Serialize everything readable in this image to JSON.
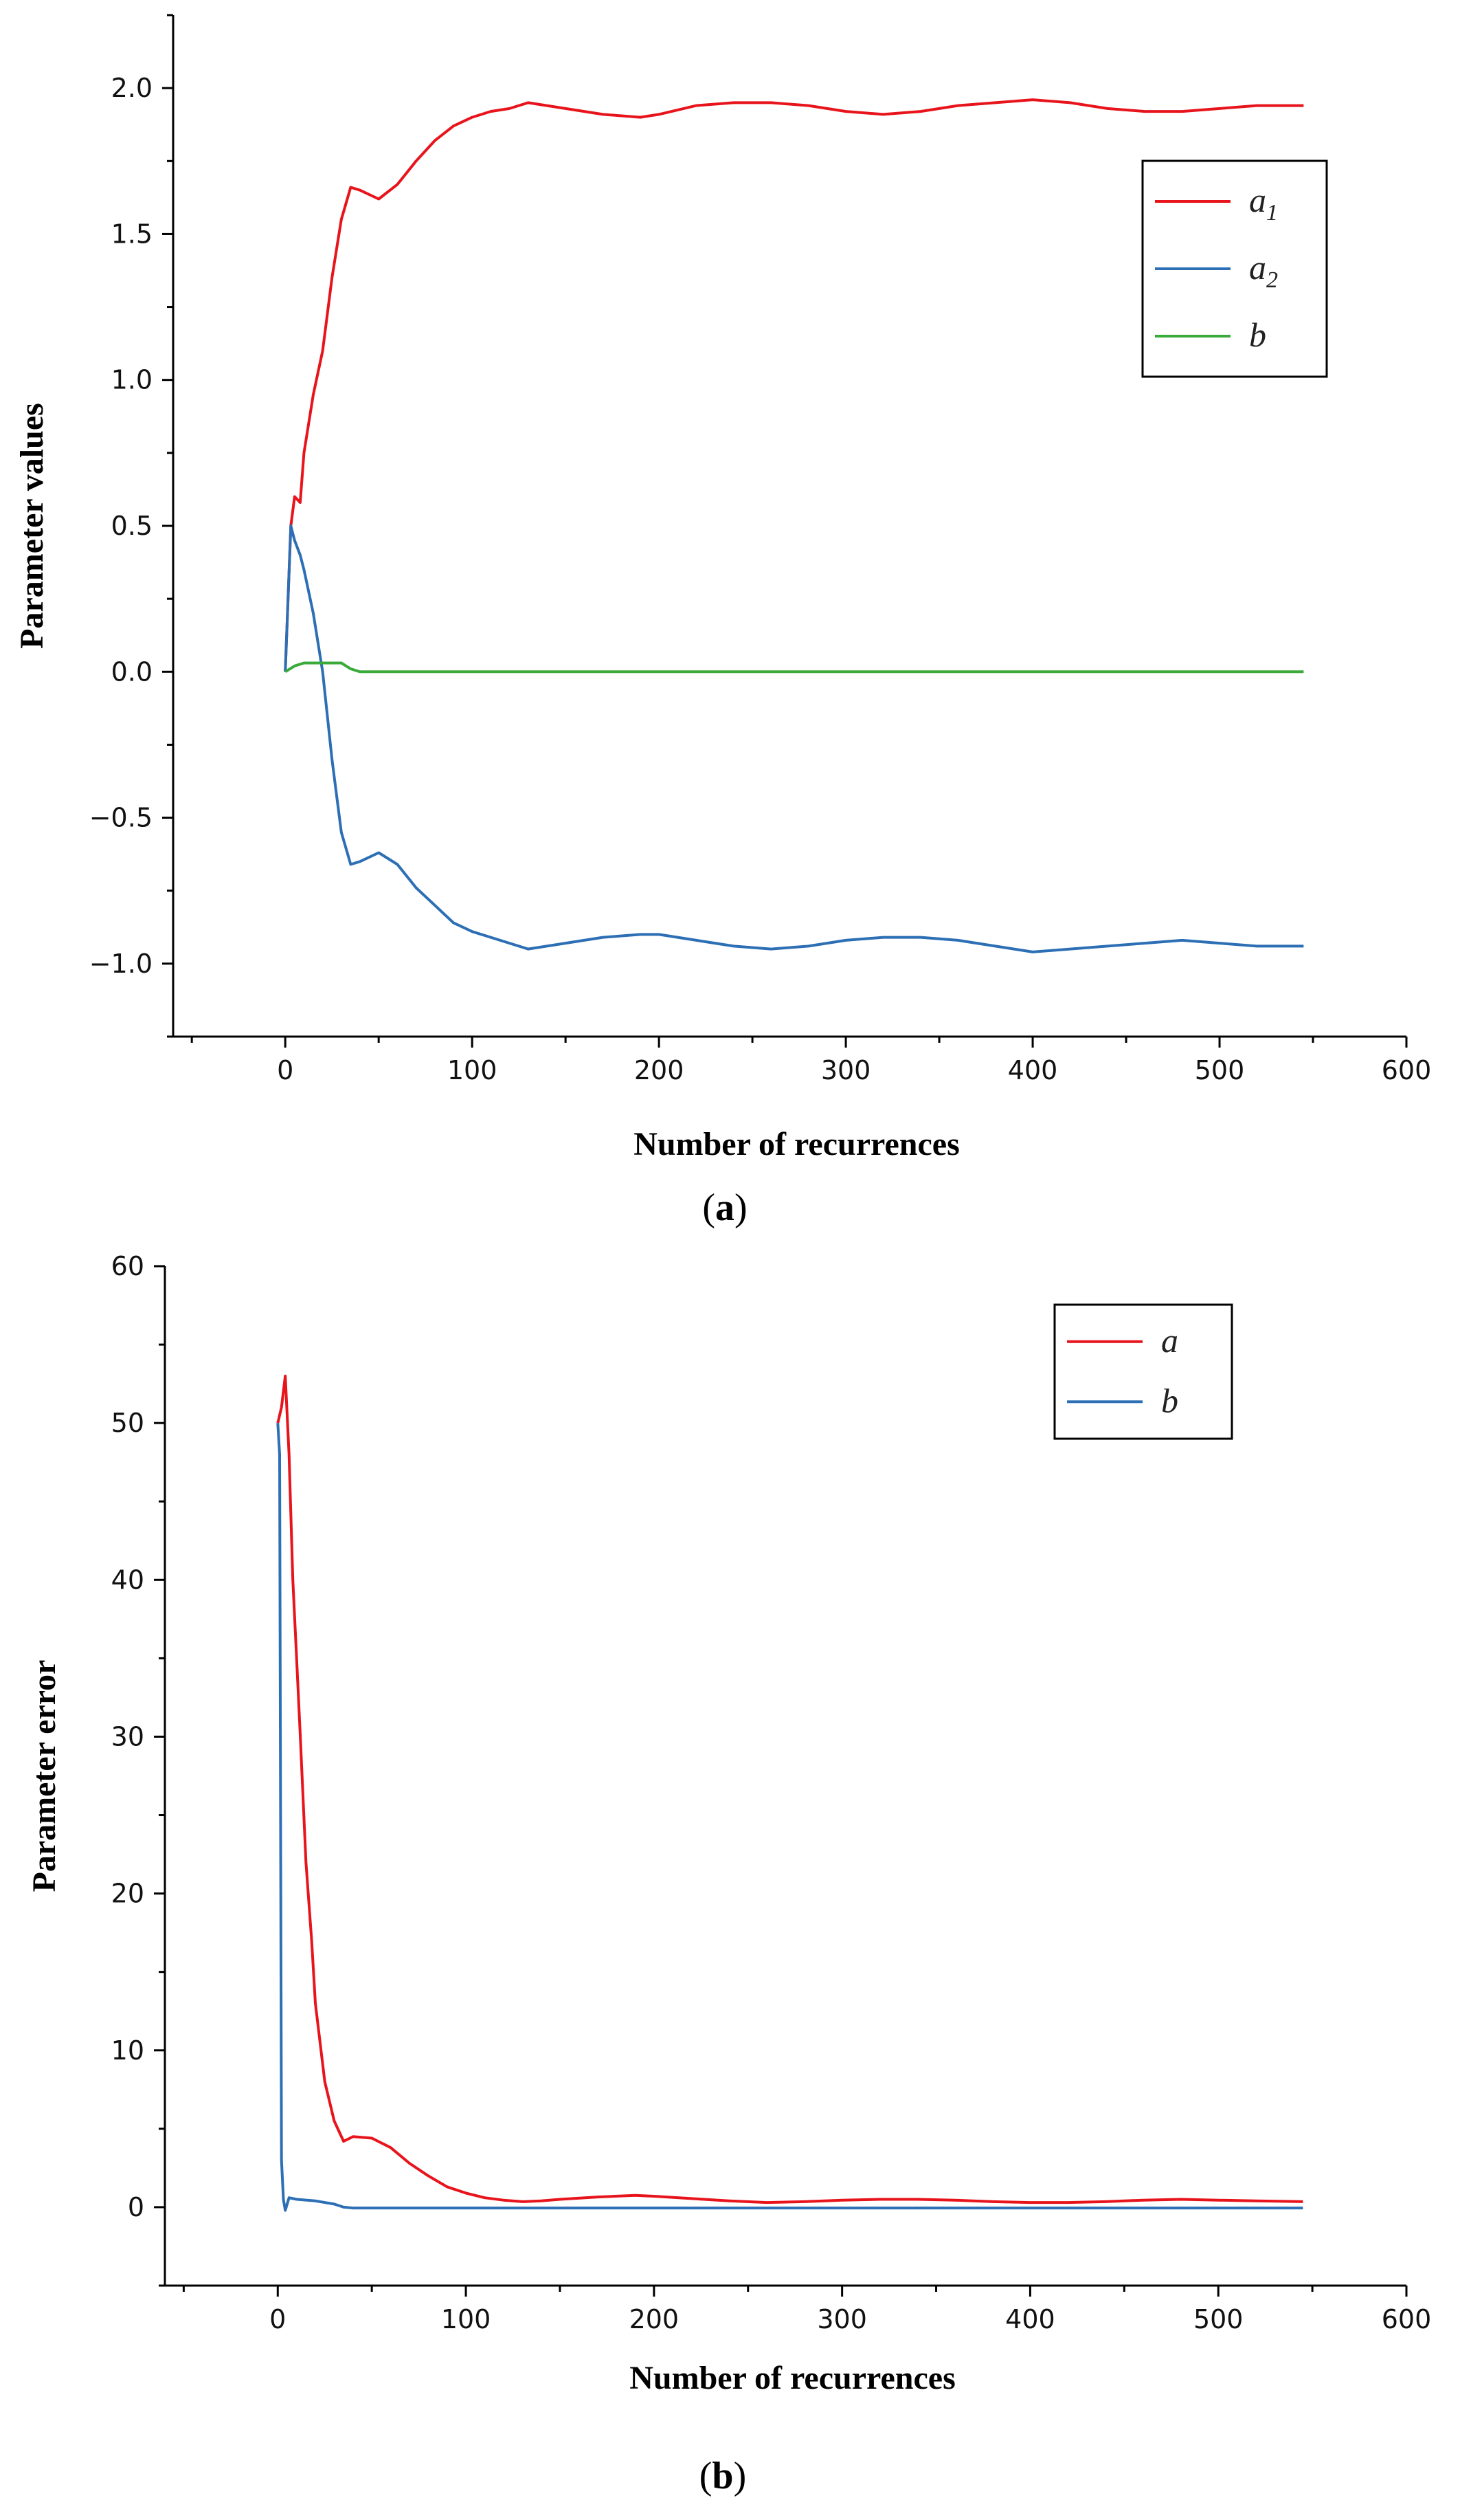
{
  "chart_data": [
    {
      "type": "line",
      "panel_label": "a",
      "xlabel": "Number of recurrences",
      "ylabel": "Parameter values",
      "xlim": [
        -60,
        600
      ],
      "ylim": [
        -1.25,
        2.25
      ],
      "xticks": [
        "0",
        "100",
        "200",
        "300",
        "400",
        "500",
        "600"
      ],
      "yticks": [
        "−1.0",
        "−0.5",
        "0.0",
        "0.5",
        "1.0",
        "1.5",
        "2.0"
      ],
      "legend_position": "top-right",
      "series": [
        {
          "name": "a1",
          "label_main": "a",
          "label_sub": "1",
          "color": "#e8141c",
          "x": [
            0,
            3,
            5,
            8,
            10,
            15,
            20,
            25,
            30,
            35,
            40,
            50,
            60,
            70,
            80,
            90,
            100,
            110,
            120,
            130,
            140,
            150,
            170,
            190,
            200,
            220,
            240,
            260,
            280,
            300,
            320,
            340,
            360,
            380,
            400,
            420,
            440,
            460,
            480,
            500,
            520,
            545
          ],
          "y": [
            0.0,
            0.5,
            0.6,
            0.58,
            0.75,
            0.95,
            1.1,
            1.35,
            1.55,
            1.66,
            1.65,
            1.62,
            1.67,
            1.75,
            1.82,
            1.87,
            1.9,
            1.92,
            1.93,
            1.95,
            1.94,
            1.93,
            1.91,
            1.9,
            1.91,
            1.94,
            1.95,
            1.95,
            1.94,
            1.92,
            1.91,
            1.92,
            1.94,
            1.95,
            1.96,
            1.95,
            1.93,
            1.92,
            1.92,
            1.93,
            1.94,
            1.94
          ]
        },
        {
          "name": "a2",
          "label_main": "a",
          "label_sub": "2",
          "color": "#2d6fb5",
          "x": [
            0,
            3,
            5,
            8,
            10,
            15,
            20,
            25,
            30,
            35,
            40,
            50,
            60,
            70,
            80,
            90,
            100,
            110,
            120,
            130,
            140,
            150,
            170,
            190,
            200,
            220,
            240,
            260,
            280,
            300,
            320,
            340,
            360,
            380,
            400,
            420,
            440,
            460,
            480,
            500,
            520,
            545
          ],
          "y": [
            0.0,
            0.5,
            0.45,
            0.4,
            0.35,
            0.2,
            0.0,
            -0.3,
            -0.55,
            -0.66,
            -0.65,
            -0.62,
            -0.66,
            -0.74,
            -0.8,
            -0.86,
            -0.89,
            -0.91,
            -0.93,
            -0.95,
            -0.94,
            -0.93,
            -0.91,
            -0.9,
            -0.9,
            -0.92,
            -0.94,
            -0.95,
            -0.94,
            -0.92,
            -0.91,
            -0.91,
            -0.92,
            -0.94,
            -0.96,
            -0.95,
            -0.94,
            -0.93,
            -0.92,
            -0.93,
            -0.94,
            -0.94
          ]
        },
        {
          "name": "b",
          "label_main": "b",
          "label_sub": "",
          "color": "#3aaa3a",
          "x": [
            0,
            5,
            10,
            20,
            30,
            35,
            40,
            60,
            100,
            200,
            300,
            400,
            500,
            545
          ],
          "y": [
            0.0,
            0.02,
            0.03,
            0.03,
            0.03,
            0.01,
            0.0,
            0.0,
            0.0,
            0.0,
            0.0,
            0.0,
            0.0,
            0.0
          ]
        }
      ]
    },
    {
      "type": "line",
      "panel_label": "b",
      "xlabel": "Number of recurrences",
      "ylabel": "Parameter error",
      "xlim": [
        -60,
        600
      ],
      "ylim": [
        -5,
        60
      ],
      "xticks": [
        "0",
        "100",
        "200",
        "300",
        "400",
        "500",
        "600"
      ],
      "yticks": [
        "0",
        "10",
        "20",
        "30",
        "40",
        "50",
        "60"
      ],
      "legend_position": "top-right",
      "series": [
        {
          "name": "a",
          "label_main": "a",
          "label_sub": "",
          "color": "#e8141c",
          "x": [
            0,
            2,
            4,
            6,
            8,
            10,
            12,
            15,
            18,
            20,
            25,
            30,
            35,
            40,
            50,
            60,
            70,
            80,
            90,
            100,
            110,
            120,
            130,
            140,
            150,
            170,
            190,
            200,
            220,
            240,
            260,
            280,
            300,
            320,
            340,
            360,
            380,
            400,
            420,
            440,
            460,
            480,
            500,
            520,
            545
          ],
          "y": [
            50,
            51,
            53,
            48,
            40,
            35,
            30,
            22,
            17,
            13,
            8,
            5.5,
            4.2,
            4.5,
            4.4,
            3.8,
            2.8,
            2.0,
            1.3,
            0.9,
            0.6,
            0.45,
            0.35,
            0.4,
            0.5,
            0.65,
            0.75,
            0.7,
            0.55,
            0.4,
            0.3,
            0.35,
            0.45,
            0.5,
            0.5,
            0.45,
            0.35,
            0.3,
            0.3,
            0.35,
            0.45,
            0.5,
            0.45,
            0.4,
            0.35
          ]
        },
        {
          "name": "b",
          "label_main": "b",
          "label_sub": "",
          "color": "#2d6fb5",
          "x": [
            0,
            1,
            2,
            3,
            4,
            6,
            10,
            20,
            30,
            35,
            40,
            100,
            200,
            300,
            400,
            500,
            545
          ],
          "y": [
            50,
            48,
            3,
            0.5,
            -0.2,
            0.6,
            0.5,
            0.4,
            0.2,
            0.0,
            -0.05,
            -0.05,
            -0.05,
            -0.05,
            -0.05,
            -0.05,
            -0.05
          ]
        }
      ]
    }
  ]
}
